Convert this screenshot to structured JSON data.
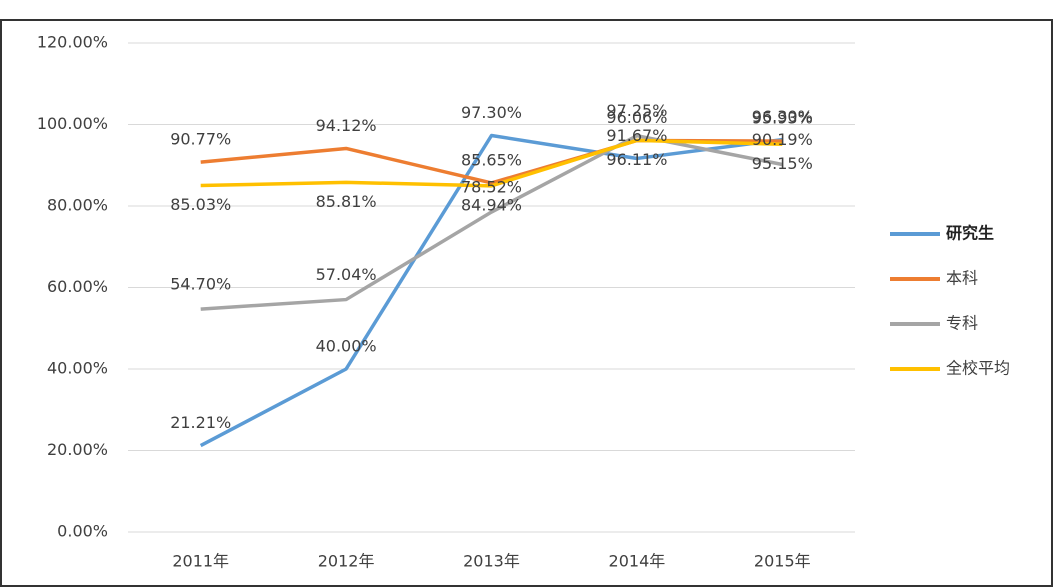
{
  "chart_data": {
    "type": "line",
    "categories": [
      "2011年",
      "2012年",
      "2013年",
      "2014年",
      "2015年"
    ],
    "series": [
      {
        "name": "研究生",
        "color": "#5b9bd5",
        "values": [
          21.21,
          40.0,
          97.3,
          91.67,
          96.3
        ],
        "value_labels": [
          "21.21%",
          "40.00%",
          "97.30%",
          "91.67%",
          "96.30%"
        ]
      },
      {
        "name": "本科",
        "color": "#ed7d31",
        "values": [
          90.77,
          94.12,
          85.65,
          96.06,
          95.93
        ],
        "value_labels": [
          "90.77%",
          "94.12%",
          "85.65%",
          "96.06%",
          "95.93%"
        ]
      },
      {
        "name": "专科",
        "color": "#a5a5a5",
        "values": [
          54.7,
          57.04,
          78.52,
          97.25,
          90.19
        ],
        "value_labels": [
          "54.70%",
          "57.04%",
          "78.52%",
          "97.25%",
          "90.19%"
        ]
      },
      {
        "name": "全校平均",
        "color": "#ffc000",
        "values": [
          85.03,
          85.81,
          84.94,
          96.11,
          95.15
        ],
        "value_labels": [
          "85.03%",
          "85.81%",
          "84.94%",
          "96.11%",
          "95.15%"
        ]
      }
    ],
    "ylim": [
      0,
      120
    ],
    "yticks": [
      {
        "value": 0,
        "label": "0.00%"
      },
      {
        "value": 20,
        "label": "20.00%"
      },
      {
        "value": 40,
        "label": "40.00%"
      },
      {
        "value": 60,
        "label": "60.00%"
      },
      {
        "value": 80,
        "label": "80.00%"
      },
      {
        "value": 100,
        "label": "100.00%"
      },
      {
        "value": 120,
        "label": "120.00%"
      }
    ],
    "grid": true,
    "legend": "right"
  }
}
